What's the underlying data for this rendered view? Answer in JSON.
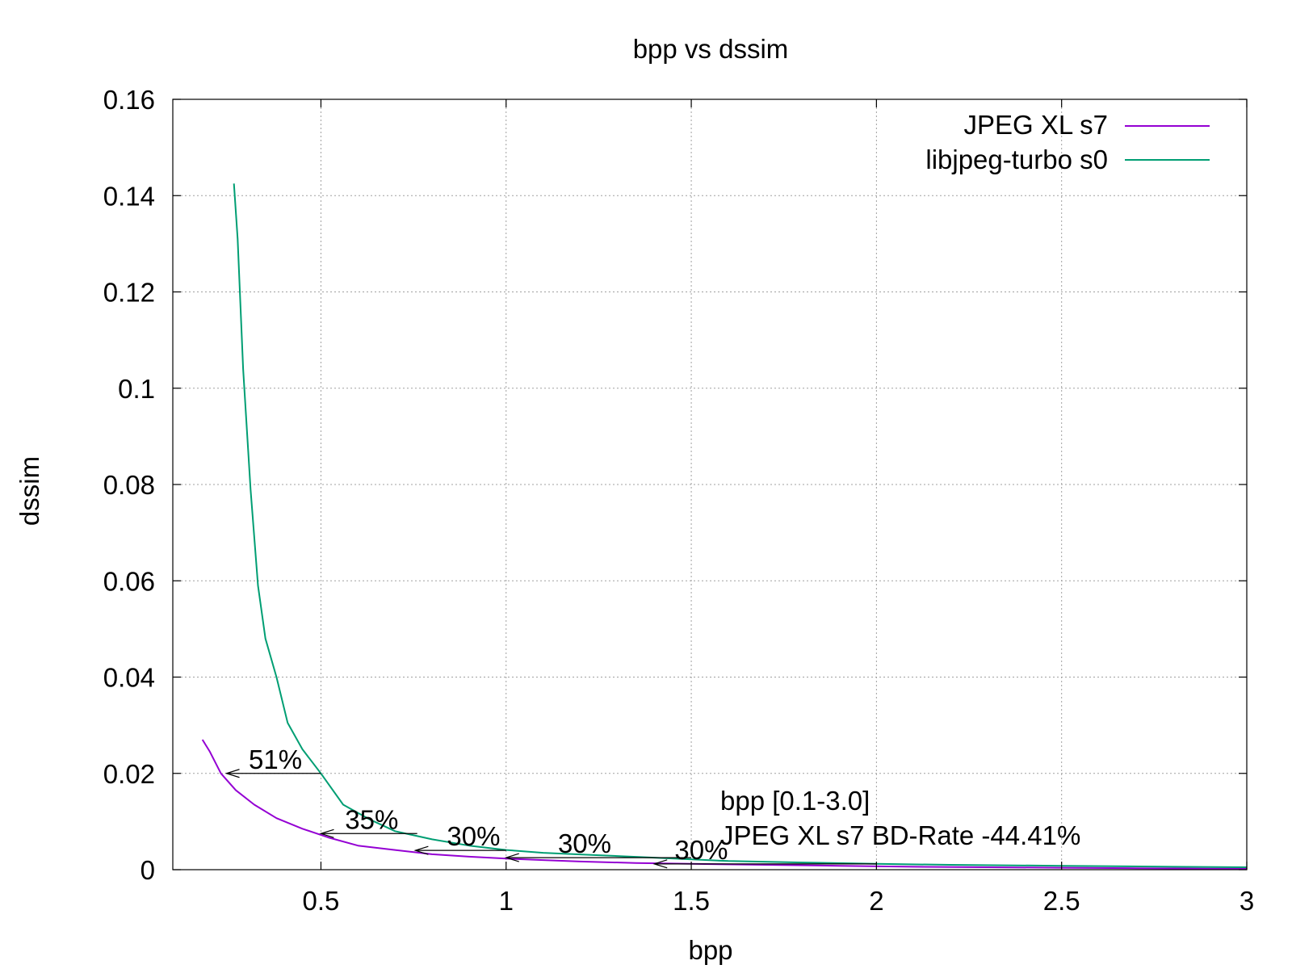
{
  "chart_data": {
    "type": "line",
    "title": "bpp vs dssim",
    "xlabel": "bpp",
    "ylabel": "dssim",
    "xlim": [
      0.1,
      3.0
    ],
    "ylim": [
      0,
      0.16
    ],
    "xticks": [
      0.5,
      1,
      1.5,
      2,
      2.5,
      3
    ],
    "xtick_labels": [
      "0.5",
      "1",
      "1.5",
      "2",
      "2.5",
      "3"
    ],
    "yticks": [
      0,
      0.02,
      0.04,
      0.06,
      0.08,
      0.1,
      0.12,
      0.14,
      0.16
    ],
    "ytick_labels": [
      "0",
      "0.02",
      "0.04",
      "0.06",
      "0.08",
      "0.1",
      "0.12",
      "0.14",
      "0.16"
    ],
    "grid": true,
    "legend_position": "top-right",
    "series": [
      {
        "name": "JPEG XL s7",
        "color": "#9400d3",
        "x": [
          0.18,
          0.2,
          0.23,
          0.27,
          0.32,
          0.38,
          0.45,
          0.52,
          0.6,
          0.7,
          0.8,
          0.9,
          1.0,
          1.1,
          1.2,
          1.35,
          1.5,
          1.7,
          1.9,
          2.1,
          2.3,
          2.5,
          2.7,
          2.9,
          3.0
        ],
        "y": [
          0.027,
          0.0245,
          0.02,
          0.0165,
          0.0135,
          0.0107,
          0.0085,
          0.0067,
          0.005,
          0.0041,
          0.0032,
          0.0027,
          0.0023,
          0.002,
          0.0017,
          0.0014,
          0.0012,
          0.001,
          0.0008,
          0.0006,
          0.0005,
          0.0004,
          0.0003,
          0.0002,
          0.0002
        ]
      },
      {
        "name": "libjpeg-turbo s0",
        "color": "#009e73",
        "x": [
          0.265,
          0.275,
          0.29,
          0.31,
          0.33,
          0.35,
          0.38,
          0.41,
          0.45,
          0.5,
          0.56,
          0.63,
          0.7,
          0.8,
          0.9,
          1.0,
          1.1,
          1.25,
          1.4,
          1.6,
          1.8,
          2.0,
          2.2,
          2.5,
          2.8,
          3.0
        ],
        "y": [
          0.1425,
          0.131,
          0.104,
          0.079,
          0.059,
          0.048,
          0.04,
          0.0305,
          0.025,
          0.02,
          0.0135,
          0.0105,
          0.008,
          0.0063,
          0.005,
          0.0041,
          0.0035,
          0.003,
          0.0025,
          0.0018,
          0.0015,
          0.0012,
          0.001,
          0.0008,
          0.0006,
          0.0005
        ]
      }
    ],
    "annotations": [
      {
        "text": "51%",
        "x_from": 0.5,
        "x_to": 0.245,
        "y": 0.02,
        "label_x": 0.305,
        "label_y": 0.02
      },
      {
        "text": "35%",
        "x_from": 0.76,
        "x_to": 0.5,
        "y": 0.0075,
        "label_x": 0.565,
        "label_y": 0.0075
      },
      {
        "text": "30%",
        "x_from": 1.0,
        "x_to": 0.755,
        "y": 0.004,
        "label_x": 0.84,
        "label_y": 0.004
      },
      {
        "text": "30%",
        "x_from": 1.5,
        "x_to": 1.0,
        "y": 0.0025,
        "label_x": 1.14,
        "label_y": 0.0025
      },
      {
        "text": "30%",
        "x_from": 2.0,
        "x_to": 1.4,
        "y": 0.0012,
        "label_x": 1.455,
        "label_y": 0.0012
      }
    ],
    "bd_rate": {
      "line1": "bpp [0.1-3.0]",
      "line2": "JPEG XL s7 BD-Rate -44.41%",
      "color": "#00ff00"
    }
  }
}
